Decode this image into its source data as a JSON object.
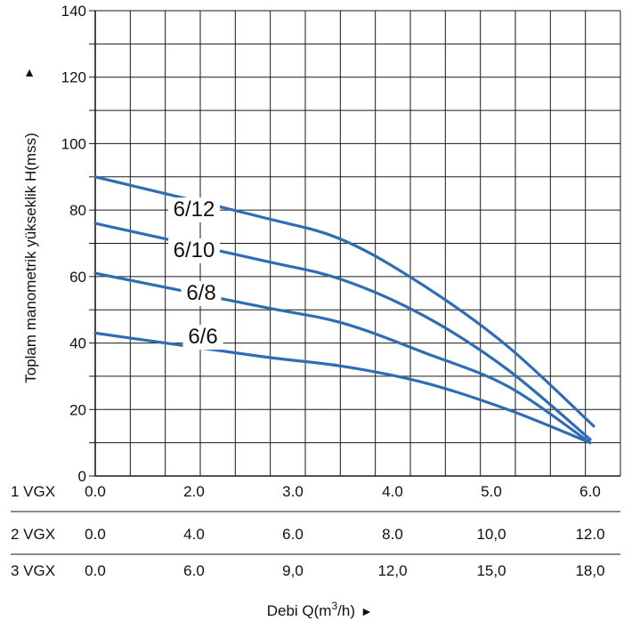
{
  "chart_data": {
    "type": "line",
    "title": "",
    "ylabel": "Toplam manometrik yükseklik H(mss)",
    "xlabel": "Debi Q(m³/h)",
    "ylim": [
      0,
      140
    ],
    "yticks": [
      "0",
      "20",
      "40",
      "60",
      "80",
      "100",
      "120",
      "140"
    ],
    "x": [
      0.0,
      2.0,
      3.0,
      4.0,
      5.0,
      6.0
    ],
    "xlim": [
      0.0,
      6.0
    ],
    "x_rows": [
      {
        "label": "1 VGX",
        "ticks": [
          "0.0",
          "2.0",
          "3.0",
          "4.0",
          "5.0",
          "6.0"
        ]
      },
      {
        "label": "2 VGX",
        "ticks": [
          "0.0",
          "4.0",
          "6.0",
          "8.0",
          "10,0",
          "12.0"
        ]
      },
      {
        "label": "3 VGX",
        "ticks": [
          "0.0",
          "6.0",
          "9,0",
          "12,0",
          "15,0",
          "18,0"
        ]
      }
    ],
    "series": [
      {
        "name": "6/12",
        "values": [
          90,
          78,
          71,
          57,
          39,
          15
        ]
      },
      {
        "name": "6/10",
        "values": [
          76,
          65,
          59,
          48,
          32,
          11
        ]
      },
      {
        "name": "6/8",
        "values": [
          61,
          51,
          46,
          37,
          27,
          10
        ]
      },
      {
        "name": "6/6",
        "values": [
          43,
          36,
          33,
          28,
          20,
          10
        ]
      }
    ],
    "line_color": "#2e6db4",
    "grid": true
  }
}
